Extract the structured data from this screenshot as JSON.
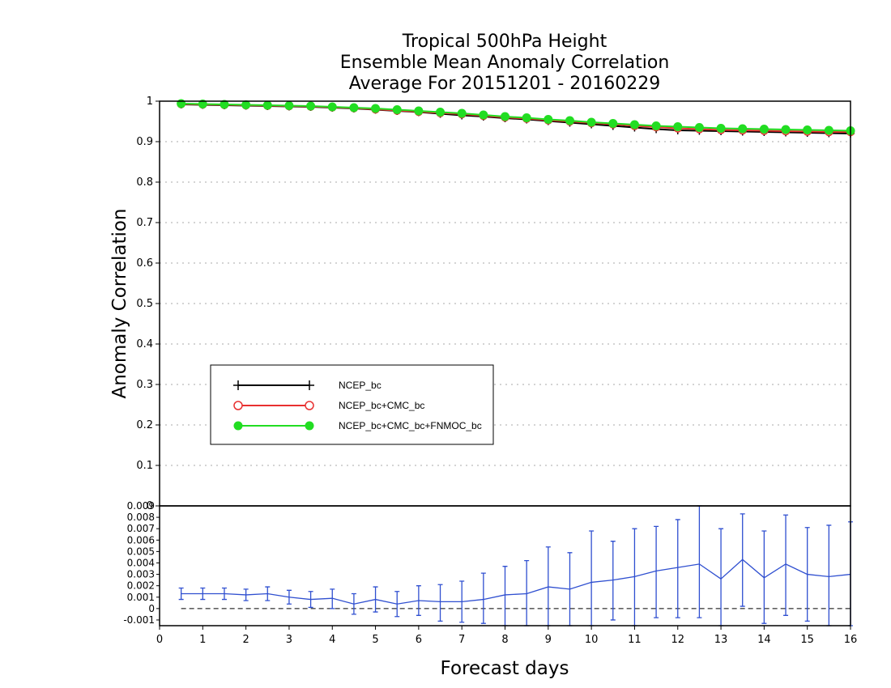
{
  "chart_data": {
    "type": "line",
    "title_lines": [
      "Tropical 500hPa Height",
      "Ensemble Mean Anomaly Correlation",
      "Average For 20151201 - 20160229"
    ],
    "xlabel": "Forecast days",
    "ylabel": "Anomaly Correlation",
    "xlim": [
      0,
      16
    ],
    "x_ticks": [
      "0",
      "1",
      "2",
      "3",
      "4",
      "5",
      "6",
      "7",
      "8",
      "9",
      "10",
      "11",
      "12",
      "13",
      "14",
      "15",
      "16"
    ],
    "ylim": [
      0,
      1
    ],
    "y_ticks": [
      "0",
      "0.1",
      "0.2",
      "0.3",
      "0.4",
      "0.5",
      "0.6",
      "0.7",
      "0.8",
      "0.9",
      "1"
    ],
    "grid": true,
    "legend_position": "lower-left",
    "x": [
      0.5,
      1,
      1.5,
      2,
      2.5,
      3,
      3.5,
      4,
      4.5,
      5,
      5.5,
      6,
      6.5,
      7,
      7.5,
      8,
      8.5,
      9,
      9.5,
      10,
      10.5,
      11,
      11.5,
      12,
      12.5,
      13,
      13.5,
      14,
      14.5,
      15,
      15.5,
      16
    ],
    "series": [
      {
        "name": "NCEP_bc",
        "color": "#000000",
        "marker": "plus",
        "values": [
          0.992,
          0.991,
          0.99,
          0.989,
          0.988,
          0.987,
          0.986,
          0.984,
          0.982,
          0.979,
          0.976,
          0.973,
          0.969,
          0.965,
          0.962,
          0.958,
          0.955,
          0.951,
          0.947,
          0.943,
          0.939,
          0.935,
          0.931,
          0.928,
          0.927,
          0.926,
          0.925,
          0.924,
          0.923,
          0.922,
          0.921,
          0.92
        ]
      },
      {
        "name": "NCEP_bc+CMC_bc",
        "color": "#e83030",
        "marker": "open-circle",
        "values": [
          0.993,
          0.992,
          0.991,
          0.99,
          0.989,
          0.988,
          0.987,
          0.985,
          0.983,
          0.98,
          0.977,
          0.974,
          0.971,
          0.968,
          0.964,
          0.96,
          0.957,
          0.953,
          0.95,
          0.946,
          0.943,
          0.939,
          0.936,
          0.933,
          0.931,
          0.929,
          0.928,
          0.927,
          0.926,
          0.925,
          0.924,
          0.924
        ]
      },
      {
        "name": "NCEP_bc+CMC_bc+FNMOC_bc",
        "color": "#22dd22",
        "marker": "filled-circle",
        "values": [
          0.994,
          0.993,
          0.992,
          0.991,
          0.99,
          0.989,
          0.988,
          0.986,
          0.984,
          0.982,
          0.979,
          0.976,
          0.973,
          0.97,
          0.966,
          0.962,
          0.959,
          0.955,
          0.952,
          0.948,
          0.945,
          0.942,
          0.939,
          0.937,
          0.935,
          0.933,
          0.932,
          0.931,
          0.93,
          0.929,
          0.928,
          0.927
        ]
      }
    ],
    "difference_panel": {
      "type": "line-errorbar",
      "color": "#2f4fd0",
      "ylim": [
        -0.0015,
        0.009
      ],
      "y_ticks": [
        "-0.001",
        "0",
        "0.001",
        "0.002",
        "0.003",
        "0.004",
        "0.005",
        "0.006",
        "0.007",
        "0.008",
        "0.009"
      ],
      "zero_line": "dashed",
      "x": [
        0.5,
        1,
        1.5,
        2,
        2.5,
        3,
        3.5,
        4,
        4.5,
        5,
        5.5,
        6,
        6.5,
        7,
        7.5,
        8,
        8.5,
        9,
        9.5,
        10,
        10.5,
        11,
        11.5,
        12,
        12.5,
        13,
        13.5,
        14,
        14.5,
        15,
        15.5,
        16
      ],
      "values": [
        0.0013,
        0.0013,
        0.0013,
        0.0012,
        0.0013,
        0.001,
        0.0008,
        0.0009,
        0.0004,
        0.0008,
        0.0004,
        0.0007,
        0.0006,
        0.0006,
        0.0008,
        0.0012,
        0.0013,
        0.0019,
        0.0017,
        0.0023,
        0.0025,
        0.0028,
        0.0033,
        0.0036,
        0.0039,
        0.0026,
        0.0043,
        0.0027,
        0.0039,
        0.003,
        0.0028,
        0.003
      ],
      "lower": [
        0.0008,
        0.0008,
        0.0008,
        0.0007,
        0.0007,
        0.0004,
        0.0001,
        0.0,
        -0.0005,
        -0.0003,
        -0.0007,
        -0.0006,
        -0.0011,
        -0.0012,
        -0.0013,
        -0.0015,
        -0.0015,
        -0.0015,
        -0.0015,
        -0.0015,
        -0.001,
        -0.0015,
        -0.0008,
        -0.0008,
        -0.0008,
        -0.0015,
        0.0002,
        -0.0013,
        -0.0006,
        -0.0011,
        -0.0015,
        -0.0015
      ],
      "upper": [
        0.0018,
        0.0018,
        0.0018,
        0.0017,
        0.0019,
        0.0016,
        0.0015,
        0.0017,
        0.0013,
        0.0019,
        0.0015,
        0.002,
        0.0021,
        0.0024,
        0.0031,
        0.0037,
        0.0042,
        0.0054,
        0.0049,
        0.0068,
        0.0059,
        0.007,
        0.0072,
        0.0078,
        0.009,
        0.007,
        0.0083,
        0.0068,
        0.0082,
        0.0071,
        0.0073,
        0.0076
      ]
    }
  }
}
